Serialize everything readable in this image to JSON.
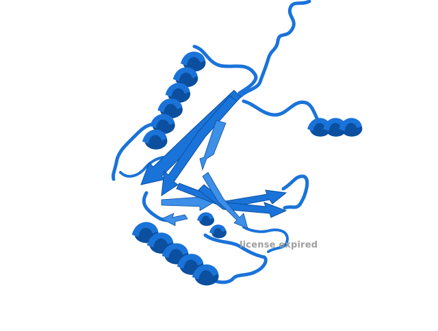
{
  "viewer": {
    "watermark": "license expired",
    "background": "#ffffff"
  },
  "structure": {
    "representation": "cartoon",
    "color": "#1a73d9",
    "color_shadow": "#0b4f9e",
    "color_light": "#3d8fe8"
  }
}
